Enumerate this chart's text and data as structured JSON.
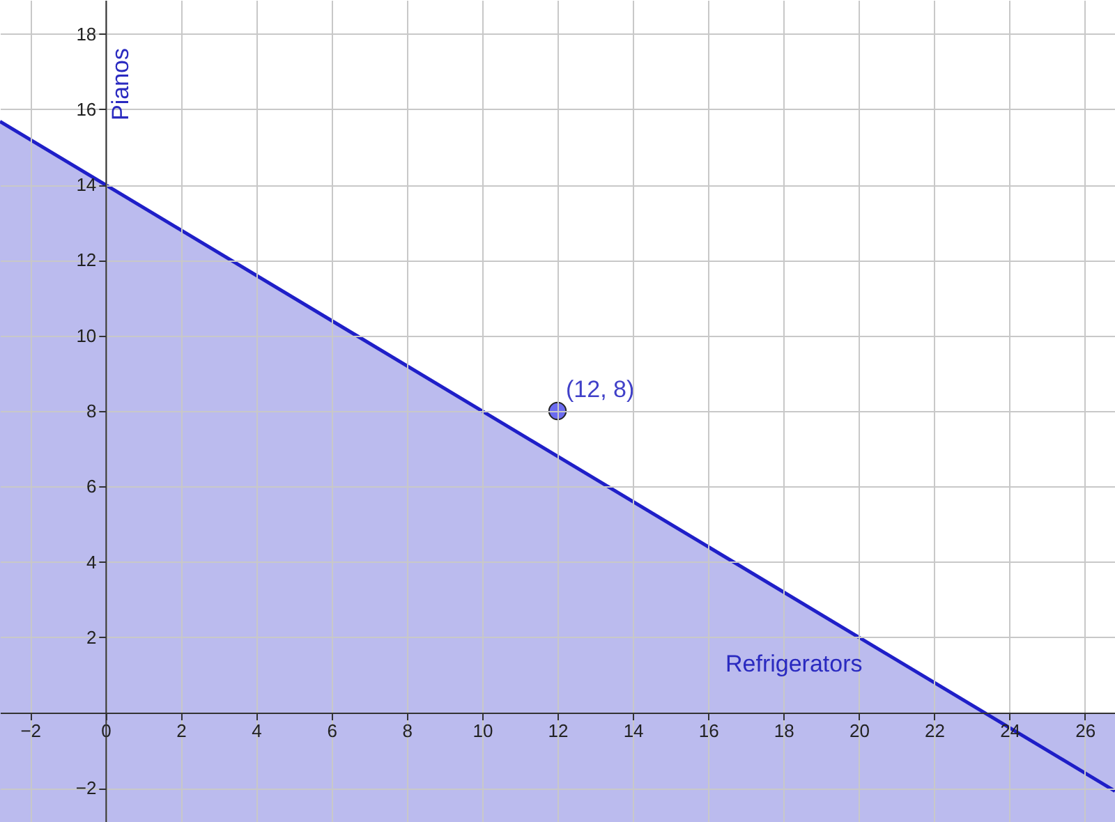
{
  "chart_data": {
    "type": "area",
    "xlabel": "Refrigerators",
    "ylabel": "Pianos",
    "xlim": [
      -2.8,
      26.8
    ],
    "ylim": [
      -2.9,
      18.9
    ],
    "xticks": [
      -2,
      0,
      2,
      4,
      6,
      8,
      10,
      12,
      14,
      16,
      18,
      20,
      22,
      24,
      26
    ],
    "yticks": [
      -2,
      2,
      4,
      6,
      8,
      10,
      12,
      14,
      16,
      18
    ],
    "grid": true,
    "series": [
      {
        "type": "area",
        "color": "#1f1fc8",
        "x": [
          -2.8,
          23.33
        ],
        "values": [
          15.68,
          0
        ]
      },
      {
        "type": "line",
        "color": "#1f1fc8",
        "x": [
          -2.8,
          26.8
        ],
        "values": [
          15.68,
          -2.08
        ]
      },
      {
        "type": "scatter",
        "color": "#6b6bf0",
        "x": [
          12
        ],
        "values": [
          8
        ],
        "marker": "circle"
      }
    ],
    "bands": [
      {
        "axis": "y",
        "from": -2.9,
        "to": 0,
        "color": "#1f1fc8"
      }
    ],
    "annotations": [
      {
        "text": "(12, 8)",
        "x": 12,
        "y": 8
      }
    ]
  }
}
